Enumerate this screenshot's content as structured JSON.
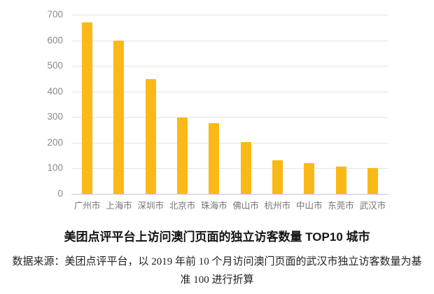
{
  "chart_data": {
    "type": "bar",
    "categories": [
      "广州市",
      "上海市",
      "深圳市",
      "北京市",
      "珠海市",
      "佛山市",
      "杭州市",
      "中山市",
      "东莞市",
      "武汉市"
    ],
    "values": [
      670,
      600,
      448,
      297,
      275,
      203,
      132,
      119,
      108,
      100
    ],
    "title": "美团点评平台上访问澳门页面的独立访客数量 TOP10 城市",
    "xlabel": "",
    "ylabel": "",
    "ylim": [
      0,
      700
    ],
    "yticks": [
      0,
      100,
      200,
      300,
      400,
      500,
      600,
      700
    ],
    "grid": true,
    "legend": false,
    "bar_color": "#FBB917",
    "gridline_color": "#e3e3e3",
    "axis_line_color": "#c6c6c6",
    "tick_label_color": "#8a8a8a"
  },
  "caption": {
    "source_note": "数据来源：美团点评平台，以 2019 年前 10 个月访问澳门页面的武汉市独立访客数量为基准 100 进行折算"
  }
}
